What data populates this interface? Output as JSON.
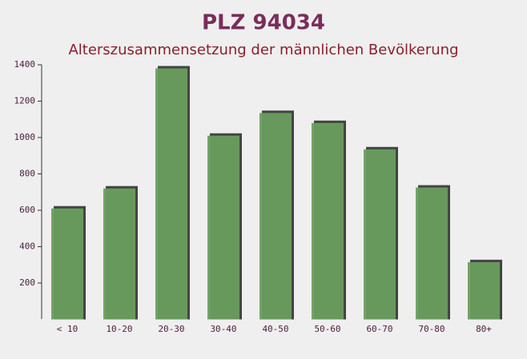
{
  "chart_data": {
    "type": "bar",
    "title": "PLZ 94034",
    "subtitle": "Alterszusammensetzung der männlichen Bevölkerung",
    "categories": [
      "< 10",
      "10-20",
      "20-30",
      "30-40",
      "40-50",
      "50-60",
      "60-70",
      "70-80",
      "80+"
    ],
    "values": [
      610,
      720,
      1380,
      1010,
      1135,
      1080,
      935,
      725,
      315
    ],
    "color": "#6a9e5e",
    "ylim": [
      0,
      1400
    ],
    "yticks": [
      200,
      400,
      600,
      800,
      1000,
      1200,
      1400
    ],
    "grid": false
  }
}
